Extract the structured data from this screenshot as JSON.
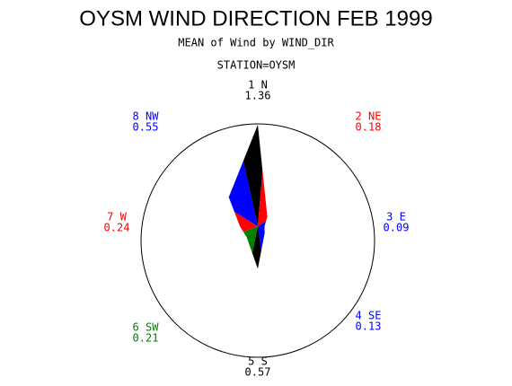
{
  "chart_data": {
    "type": "star",
    "title": "OYSM WIND DIRECTION FEB 1999",
    "subtitle": "MEAN of Wind by WIND_DIR",
    "station": "STATION=OYSM",
    "categories": [
      "1 N",
      "2 NE",
      "3 E",
      "4 SE",
      "5 S",
      "7 W",
      "6 SW",
      "8 NW"
    ],
    "values": [
      1.36,
      0.18,
      0.09,
      0.13,
      0.57,
      0.24,
      0.21,
      0.55
    ],
    "colors": [
      "#000000",
      "#ff0000",
      "#0000ff",
      "#0000ff",
      "#000000",
      "#ff0000",
      "#008000",
      "#0000ff"
    ]
  }
}
